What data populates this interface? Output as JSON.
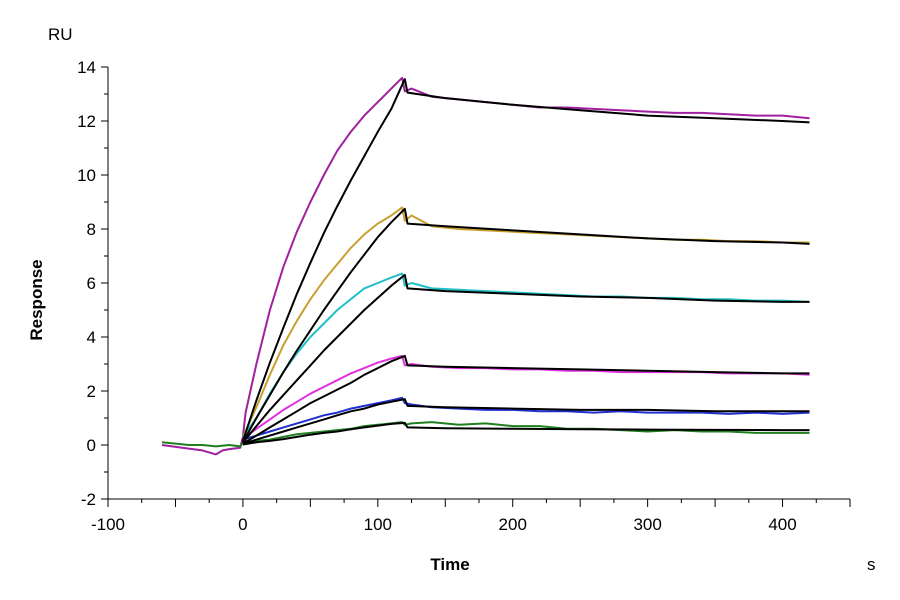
{
  "chart_data": {
    "type": "line",
    "title": "",
    "xlabel": "Time",
    "ylabel": "Response",
    "x_unit": "s",
    "y_unit": "RU",
    "xlim": [
      -100,
      450
    ],
    "ylim": [
      -2,
      14
    ],
    "x_ticks": [
      -100,
      0,
      100,
      200,
      300,
      400
    ],
    "y_ticks": [
      -2,
      0,
      2,
      4,
      6,
      8,
      10,
      12,
      14
    ],
    "grid": false,
    "legend": "none",
    "fit_color": "#000000",
    "series": [
      {
        "color": "#a020a0",
        "x": [
          -60,
          -45,
          -30,
          -20,
          -15,
          -10,
          -2,
          0,
          2,
          10,
          20,
          30,
          40,
          50,
          60,
          70,
          80,
          90,
          100,
          110,
          118,
          120,
          125,
          140,
          160,
          180,
          200,
          220,
          240,
          260,
          280,
          300,
          320,
          340,
          360,
          380,
          400,
          420
        ],
        "y": [
          0.0,
          -0.1,
          -0.2,
          -0.35,
          -0.2,
          -0.15,
          -0.1,
          0.3,
          1.2,
          3.0,
          5.0,
          6.6,
          7.9,
          9.0,
          10.0,
          10.9,
          11.6,
          12.2,
          12.7,
          13.2,
          13.6,
          13.1,
          13.2,
          12.9,
          12.8,
          12.7,
          12.6,
          12.5,
          12.5,
          12.45,
          12.4,
          12.35,
          12.3,
          12.3,
          12.25,
          12.2,
          12.2,
          12.1
        ]
      },
      {
        "color": "#c8a030",
        "x": [
          0,
          10,
          20,
          30,
          40,
          50,
          60,
          70,
          80,
          90,
          100,
          110,
          118,
          120,
          125,
          140,
          160,
          180,
          200,
          220,
          240,
          260,
          280,
          300,
          320,
          340,
          360,
          380,
          400,
          420
        ],
        "y": [
          0.3,
          1.4,
          2.6,
          3.7,
          4.6,
          5.4,
          6.1,
          6.7,
          7.3,
          7.8,
          8.2,
          8.5,
          8.8,
          8.3,
          8.5,
          8.1,
          8.0,
          7.95,
          7.9,
          7.85,
          7.8,
          7.75,
          7.7,
          7.65,
          7.6,
          7.6,
          7.55,
          7.55,
          7.5,
          7.5
        ]
      },
      {
        "color": "#20c0c8",
        "x": [
          0,
          10,
          20,
          30,
          40,
          50,
          60,
          70,
          80,
          90,
          100,
          110,
          118,
          120,
          125,
          140,
          160,
          180,
          200,
          220,
          240,
          260,
          280,
          300,
          320,
          340,
          360,
          380,
          400,
          420
        ],
        "y": [
          0.3,
          1.0,
          1.9,
          2.7,
          3.4,
          4.0,
          4.5,
          5.0,
          5.4,
          5.8,
          6.0,
          6.2,
          6.35,
          5.9,
          6.0,
          5.8,
          5.75,
          5.7,
          5.65,
          5.6,
          5.55,
          5.5,
          5.5,
          5.45,
          5.45,
          5.4,
          5.4,
          5.35,
          5.35,
          5.3
        ]
      },
      {
        "color": "#e030e0",
        "x": [
          0,
          10,
          20,
          30,
          40,
          50,
          60,
          70,
          80,
          90,
          100,
          110,
          118,
          120,
          125,
          140,
          160,
          180,
          200,
          220,
          240,
          260,
          280,
          300,
          320,
          340,
          360,
          380,
          400,
          420
        ],
        "y": [
          0.25,
          0.6,
          0.95,
          1.3,
          1.6,
          1.9,
          2.15,
          2.4,
          2.65,
          2.85,
          3.05,
          3.2,
          3.3,
          2.95,
          3.0,
          2.9,
          2.85,
          2.85,
          2.8,
          2.8,
          2.75,
          2.75,
          2.7,
          2.7,
          2.7,
          2.7,
          2.65,
          2.65,
          2.65,
          2.6
        ]
      },
      {
        "color": "#2030d0",
        "x": [
          0,
          10,
          20,
          30,
          40,
          50,
          60,
          70,
          80,
          90,
          100,
          110,
          118,
          120,
          125,
          140,
          160,
          180,
          200,
          220,
          240,
          260,
          280,
          300,
          320,
          340,
          360,
          380,
          400,
          420
        ],
        "y": [
          0.2,
          0.35,
          0.5,
          0.65,
          0.8,
          0.95,
          1.1,
          1.2,
          1.35,
          1.45,
          1.55,
          1.65,
          1.75,
          1.55,
          1.5,
          1.4,
          1.35,
          1.3,
          1.3,
          1.25,
          1.25,
          1.2,
          1.25,
          1.2,
          1.2,
          1.2,
          1.15,
          1.2,
          1.15,
          1.2
        ]
      },
      {
        "color": "#208020",
        "x": [
          -60,
          -50,
          -40,
          -30,
          -20,
          -10,
          -2,
          0,
          10,
          20,
          30,
          40,
          50,
          60,
          70,
          80,
          90,
          100,
          110,
          118,
          120,
          125,
          140,
          160,
          180,
          200,
          220,
          240,
          260,
          280,
          300,
          320,
          340,
          360,
          380,
          400,
          420
        ],
        "y": [
          0.1,
          0.05,
          0.0,
          0.0,
          -0.05,
          0.0,
          -0.05,
          0.1,
          0.15,
          0.2,
          0.3,
          0.4,
          0.45,
          0.5,
          0.55,
          0.6,
          0.7,
          0.75,
          0.8,
          0.85,
          0.75,
          0.8,
          0.85,
          0.75,
          0.8,
          0.7,
          0.7,
          0.6,
          0.6,
          0.55,
          0.5,
          0.55,
          0.5,
          0.5,
          0.45,
          0.45,
          0.45
        ]
      }
    ],
    "fits": [
      {
        "x": [
          0,
          10,
          20,
          30,
          40,
          50,
          60,
          70,
          80,
          90,
          100,
          110,
          120,
          122,
          150,
          200,
          250,
          300,
          350,
          400,
          420
        ],
        "y": [
          0.15,
          1.65,
          3.05,
          4.35,
          5.6,
          6.75,
          7.85,
          8.85,
          9.8,
          10.7,
          11.6,
          12.45,
          13.55,
          13.05,
          12.85,
          12.6,
          12.4,
          12.2,
          12.1,
          12.0,
          11.95
        ]
      },
      {
        "x": [
          0,
          10,
          20,
          30,
          40,
          50,
          60,
          70,
          80,
          90,
          100,
          110,
          120,
          122,
          150,
          200,
          250,
          300,
          350,
          400,
          420
        ],
        "y": [
          0.1,
          1.0,
          1.85,
          2.7,
          3.5,
          4.25,
          5.0,
          5.7,
          6.4,
          7.05,
          7.7,
          8.25,
          8.75,
          8.2,
          8.1,
          7.95,
          7.8,
          7.65,
          7.55,
          7.5,
          7.45
        ]
      },
      {
        "x": [
          0,
          10,
          20,
          30,
          40,
          50,
          60,
          70,
          80,
          90,
          100,
          110,
          120,
          122,
          150,
          200,
          250,
          300,
          350,
          400,
          420
        ],
        "y": [
          0.08,
          0.7,
          1.3,
          1.85,
          2.4,
          2.95,
          3.5,
          4.0,
          4.5,
          5.0,
          5.45,
          5.9,
          6.3,
          5.8,
          5.7,
          5.6,
          5.5,
          5.45,
          5.35,
          5.3,
          5.3
        ]
      },
      {
        "x": [
          0,
          10,
          20,
          30,
          40,
          50,
          60,
          70,
          80,
          90,
          100,
          110,
          120,
          122,
          150,
          200,
          250,
          300,
          350,
          400,
          420
        ],
        "y": [
          0.05,
          0.35,
          0.65,
          0.95,
          1.25,
          1.55,
          1.8,
          2.05,
          2.3,
          2.6,
          2.85,
          3.1,
          3.3,
          2.95,
          2.9,
          2.85,
          2.8,
          2.75,
          2.7,
          2.65,
          2.65
        ]
      },
      {
        "x": [
          0,
          10,
          20,
          30,
          40,
          50,
          60,
          70,
          80,
          90,
          100,
          110,
          120,
          122,
          150,
          200,
          250,
          300,
          350,
          400,
          420
        ],
        "y": [
          0.03,
          0.2,
          0.35,
          0.5,
          0.65,
          0.8,
          0.95,
          1.1,
          1.25,
          1.35,
          1.5,
          1.6,
          1.7,
          1.45,
          1.4,
          1.35,
          1.3,
          1.3,
          1.25,
          1.25,
          1.25
        ]
      },
      {
        "x": [
          0,
          10,
          20,
          30,
          40,
          50,
          60,
          70,
          80,
          90,
          100,
          110,
          120,
          122,
          150,
          200,
          250,
          300,
          350,
          400,
          420
        ],
        "y": [
          0.02,
          0.1,
          0.15,
          0.22,
          0.3,
          0.38,
          0.45,
          0.5,
          0.58,
          0.65,
          0.72,
          0.78,
          0.82,
          0.65,
          0.62,
          0.6,
          0.58,
          0.57,
          0.56,
          0.55,
          0.55
        ]
      }
    ]
  }
}
